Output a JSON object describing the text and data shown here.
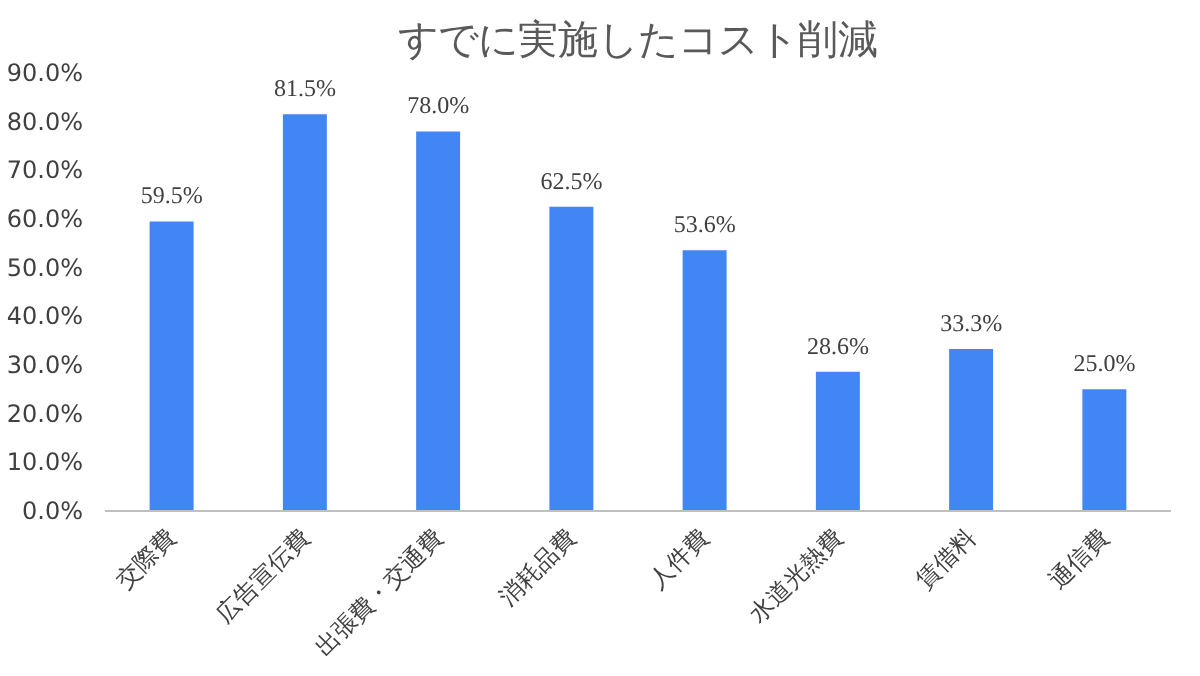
{
  "chart_data": {
    "type": "bar",
    "title": "すでに実施したコスト削減",
    "categories": [
      "交際費",
      "広告宣伝費",
      "出張費・交通費",
      "消耗品費",
      "人件費",
      "水道光熱費",
      "賃借料",
      "通信費"
    ],
    "values": [
      59.5,
      81.5,
      78.0,
      62.5,
      53.6,
      28.6,
      33.3,
      25.0
    ],
    "value_labels": [
      "59.5%",
      "81.5%",
      "78.0%",
      "62.5%",
      "53.6%",
      "28.6%",
      "33.3%",
      "25.0%"
    ],
    "color": "#4285f4",
    "ylim": [
      0,
      90
    ],
    "yticks": [
      {
        "value": 0,
        "label": "0.0%"
      },
      {
        "value": 10,
        "label": "10.0%"
      },
      {
        "value": 20,
        "label": "20.0%"
      },
      {
        "value": 30,
        "label": "30.0%"
      },
      {
        "value": 40,
        "label": "40.0%"
      },
      {
        "value": 50,
        "label": "50.0%"
      },
      {
        "value": 60,
        "label": "60.0%"
      },
      {
        "value": 70,
        "label": "70.0%"
      },
      {
        "value": 80,
        "label": "80.0%"
      },
      {
        "value": 90,
        "label": "90.0%"
      }
    ]
  }
}
